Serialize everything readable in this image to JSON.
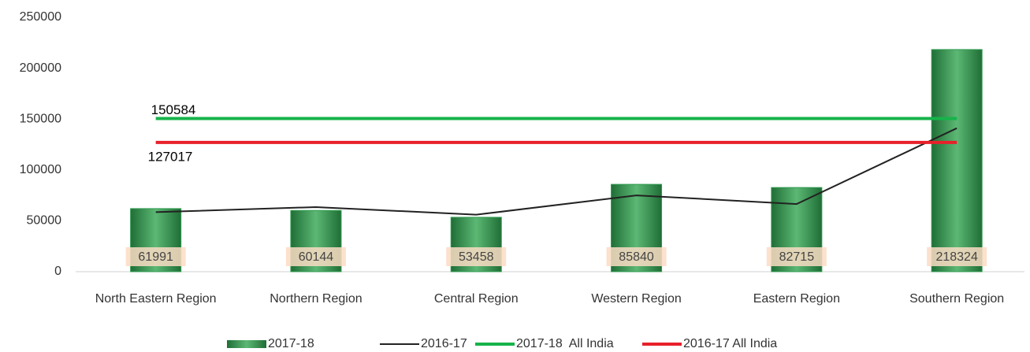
{
  "chart_data": {
    "type": "bar",
    "categories": [
      "North Eastern Region",
      "Northern Region",
      "Central Region",
      "Western Region",
      "Eastern Region",
      "Southern Region"
    ],
    "series": [
      {
        "name": "2017-18",
        "type": "bar",
        "color": "#2e9a4f",
        "values": [
          61991,
          60144,
          53458,
          85840,
          82715,
          218324
        ]
      },
      {
        "name": "2016-17",
        "type": "line",
        "color": "#222222",
        "values": [
          58500,
          63500,
          56000,
          75000,
          66500,
          141000
        ]
      },
      {
        "name": "2017-18  All India",
        "type": "line",
        "color": "#17b34a",
        "values": [
          150584,
          150584,
          150584,
          150584,
          150584,
          150584
        ]
      },
      {
        "name": "2016-17 All India",
        "type": "line",
        "color": "#e8202a",
        "values": [
          127017,
          127017,
          127017,
          127017,
          127017,
          127017
        ]
      }
    ],
    "ylim": [
      0,
      250000
    ],
    "yticks": [
      0,
      50000,
      100000,
      150000,
      200000,
      250000
    ],
    "legend": "bottom"
  }
}
